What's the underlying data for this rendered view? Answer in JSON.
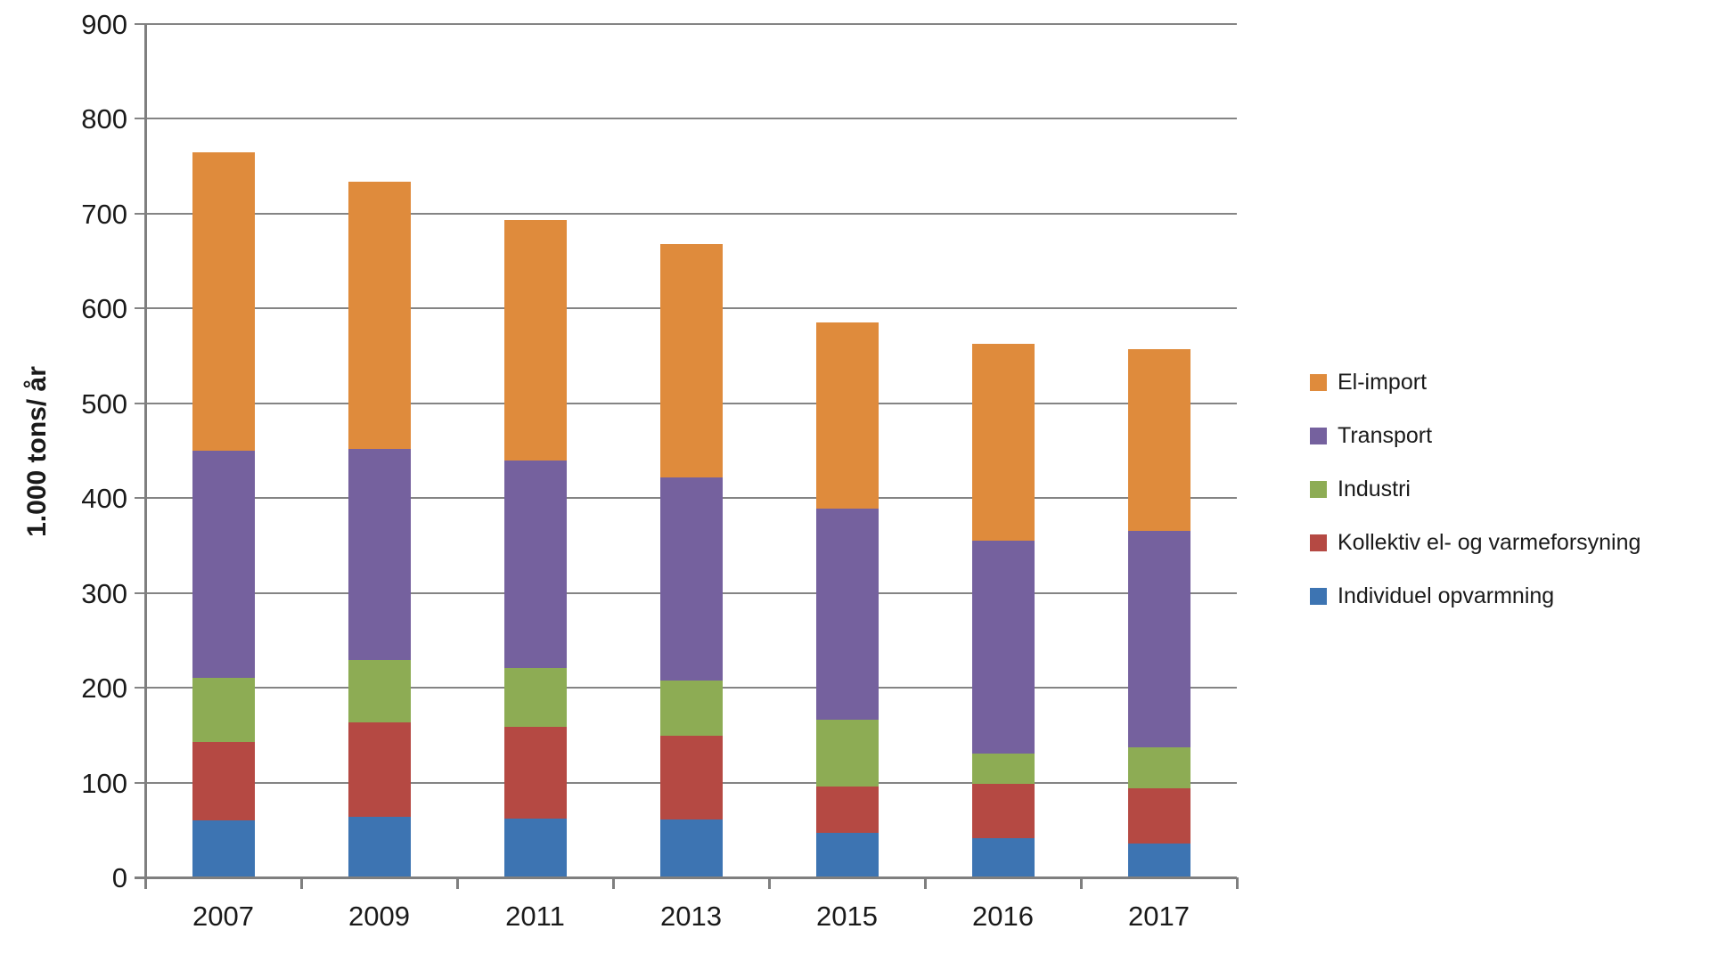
{
  "chart_data": {
    "type": "bar",
    "stacked": true,
    "title": "",
    "xlabel": "",
    "ylabel": "1.000 tons/ år",
    "ylim": [
      0,
      900
    ],
    "yticks": [
      900,
      800,
      700,
      600,
      500,
      400,
      300,
      200,
      100,
      0
    ],
    "grid": true,
    "categories": [
      "2007",
      "2009",
      "2011",
      "2013",
      "2015",
      "2016",
      "2017"
    ],
    "series": [
      {
        "name": "Individuel opvarmning",
        "color": "#3d74b2",
        "values": [
          60,
          64,
          62,
          61,
          47,
          41,
          36
        ]
      },
      {
        "name": "Kollektiv el- og varmeforsyning",
        "color": "#b54943",
        "values": [
          83,
          99,
          97,
          88,
          49,
          58,
          58
        ]
      },
      {
        "name": "Industri",
        "color": "#8dac54",
        "values": [
          67,
          66,
          62,
          59,
          70,
          32,
          43
        ]
      },
      {
        "name": "Transport",
        "color": "#75619e",
        "values": [
          240,
          223,
          219,
          214,
          223,
          224,
          228
        ]
      },
      {
        "name": "El-import",
        "color": "#df8b3c",
        "values": [
          315,
          282,
          253,
          246,
          196,
          208,
          192
        ]
      }
    ],
    "totals": [
      765,
      734,
      693,
      668,
      585,
      563,
      557
    ],
    "legend": {
      "position": "right",
      "order": [
        "El-import",
        "Transport",
        "Industri",
        "Kollektiv el- og varmeforsyning",
        "Individuel opvarmning"
      ]
    }
  }
}
